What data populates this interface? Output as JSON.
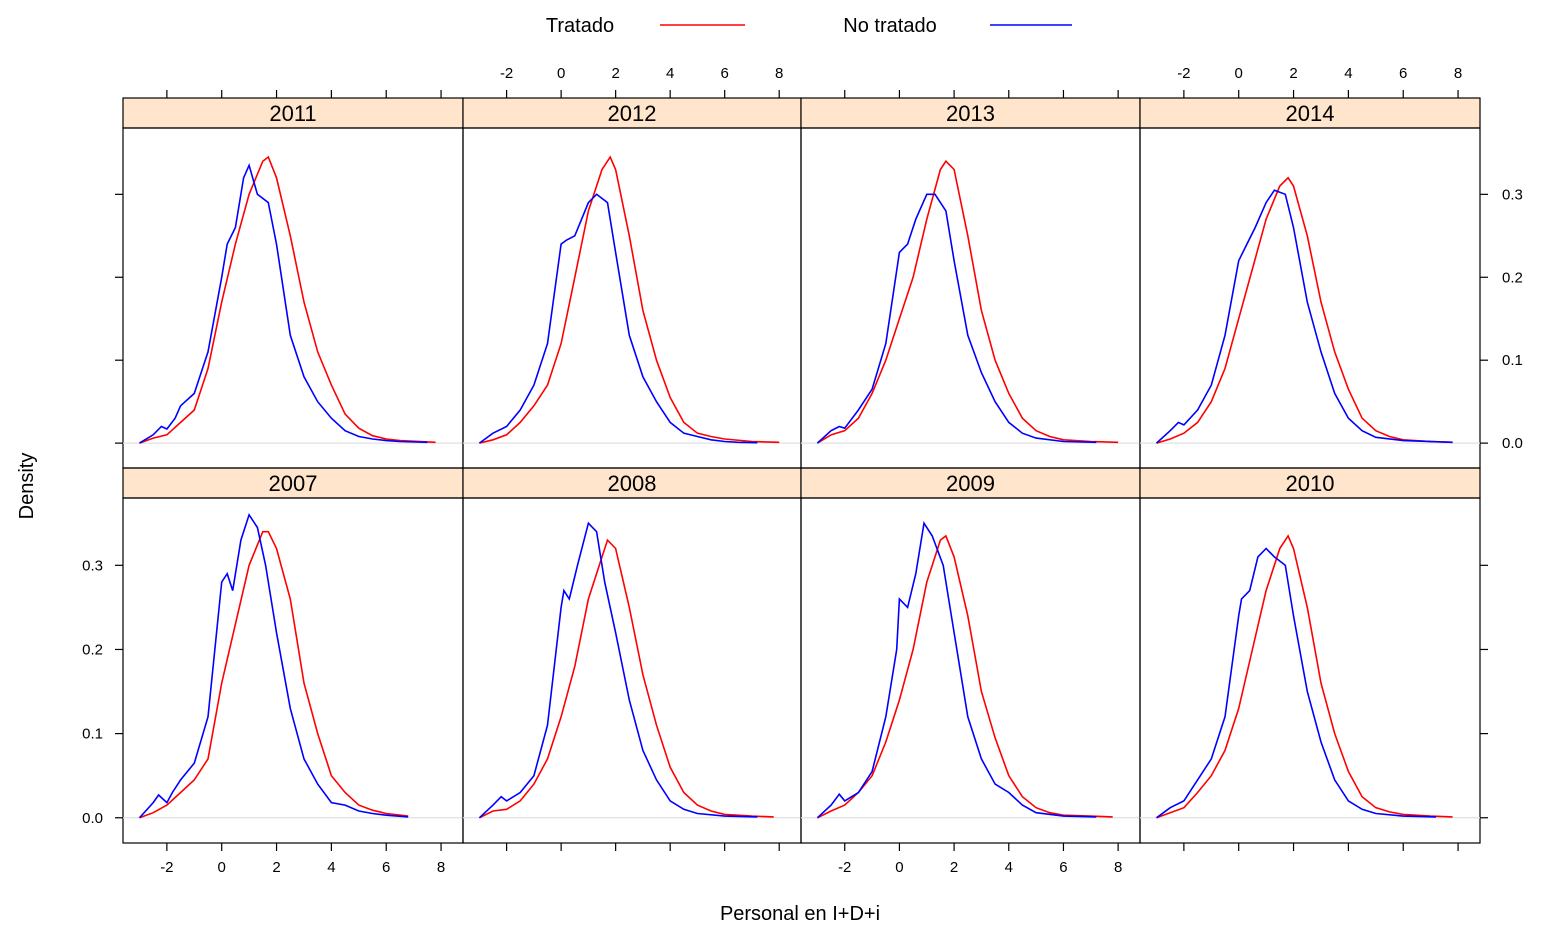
{
  "chart_data": {
    "type": "line",
    "subtype": "density",
    "xlabel": "Personal en I+D+i",
    "ylabel": "Density",
    "xlim": [
      -3.6,
      8.8
    ],
    "ylim": [
      -0.03,
      0.38
    ],
    "xticks": [
      -2,
      0,
      2,
      4,
      6,
      8
    ],
    "yticks": [
      0.0,
      0.1,
      0.2,
      0.3
    ],
    "ytick_labels": [
      "0.0",
      "0.1",
      "0.2",
      "0.3"
    ],
    "strip_color": "#ffe5cc",
    "legend": {
      "position": "top",
      "items": [
        {
          "name": "Tratado",
          "color": "#ff0000"
        },
        {
          "name": "No tratado",
          "color": "#0000ff"
        }
      ]
    },
    "panels": [
      {
        "year": "2011",
        "row": 0,
        "col": 0,
        "series": [
          {
            "name": "Tratado",
            "color": "#ff0000",
            "x": [
              -3,
              -2.5,
              -2,
              -1.5,
              -1,
              -0.5,
              0,
              0.5,
              1,
              1.5,
              1.7,
              2,
              2.5,
              3,
              3.5,
              4,
              4.5,
              5,
              5.5,
              6,
              6.5,
              7.8
            ],
            "y": [
              0,
              0.006,
              0.01,
              0.025,
              0.04,
              0.09,
              0.17,
              0.24,
              0.3,
              0.34,
              0.345,
              0.32,
              0.25,
              0.17,
              0.11,
              0.07,
              0.035,
              0.018,
              0.009,
              0.005,
              0.003,
              0.001
            ]
          },
          {
            "name": "No tratado",
            "color": "#0000ff",
            "x": [
              -3,
              -2.5,
              -2.2,
              -2,
              -1.7,
              -1.5,
              -1,
              -0.5,
              0,
              0.2,
              0.5,
              0.8,
              1,
              1.3,
              1.7,
              2,
              2.5,
              3,
              3.5,
              4,
              4.5,
              5,
              5.5,
              6,
              6.5,
              7.5
            ],
            "y": [
              0,
              0.01,
              0.02,
              0.017,
              0.03,
              0.045,
              0.06,
              0.11,
              0.2,
              0.24,
              0.26,
              0.32,
              0.335,
              0.3,
              0.29,
              0.24,
              0.13,
              0.08,
              0.05,
              0.03,
              0.015,
              0.008,
              0.005,
              0.003,
              0.002,
              0.001
            ]
          }
        ]
      },
      {
        "year": "2012",
        "row": 0,
        "col": 1,
        "series": [
          {
            "name": "Tratado",
            "color": "#ff0000",
            "x": [
              -3,
              -2.5,
              -2,
              -1.5,
              -1,
              -0.5,
              0,
              0.5,
              1,
              1.5,
              1.8,
              2,
              2.5,
              3,
              3.5,
              4,
              4.5,
              5,
              5.5,
              6,
              7,
              8
            ],
            "y": [
              0,
              0.004,
              0.01,
              0.025,
              0.045,
              0.07,
              0.12,
              0.2,
              0.28,
              0.33,
              0.345,
              0.33,
              0.25,
              0.16,
              0.1,
              0.055,
              0.025,
              0.012,
              0.008,
              0.005,
              0.002,
              0.001
            ]
          },
          {
            "name": "No tratado",
            "color": "#0000ff",
            "x": [
              -3,
              -2.5,
              -2,
              -1.5,
              -1,
              -0.5,
              0,
              0.2,
              0.5,
              1,
              1.3,
              1.7,
              2,
              2.5,
              3,
              3.5,
              4,
              4.5,
              5,
              5.5,
              6,
              6.5,
              7.2
            ],
            "y": [
              0,
              0.012,
              0.02,
              0.04,
              0.07,
              0.12,
              0.24,
              0.245,
              0.25,
              0.29,
              0.3,
              0.29,
              0.23,
              0.13,
              0.08,
              0.05,
              0.025,
              0.012,
              0.008,
              0.004,
              0.002,
              0.001,
              0.0005
            ]
          }
        ]
      },
      {
        "year": "2013",
        "row": 0,
        "col": 2,
        "series": [
          {
            "name": "Tratado",
            "color": "#ff0000",
            "x": [
              -3,
              -2.5,
              -2,
              -1.5,
              -1,
              -0.5,
              0,
              0.5,
              1,
              1.5,
              1.7,
              2,
              2.5,
              3,
              3.5,
              4,
              4.5,
              5,
              5.5,
              6,
              7,
              8
            ],
            "y": [
              0,
              0.01,
              0.015,
              0.03,
              0.06,
              0.1,
              0.15,
              0.2,
              0.27,
              0.33,
              0.34,
              0.33,
              0.25,
              0.16,
              0.1,
              0.06,
              0.03,
              0.015,
              0.008,
              0.004,
              0.002,
              0.001
            ]
          },
          {
            "name": "No tratado",
            "color": "#0000ff",
            "x": [
              -3,
              -2.5,
              -2.2,
              -2,
              -1.5,
              -1,
              -0.5,
              0,
              0.3,
              0.6,
              1,
              1.3,
              1.7,
              2,
              2.5,
              3,
              3.5,
              4,
              4.5,
              5,
              6,
              7.2
            ],
            "y": [
              0,
              0.015,
              0.02,
              0.018,
              0.04,
              0.065,
              0.12,
              0.23,
              0.24,
              0.27,
              0.3,
              0.3,
              0.28,
              0.22,
              0.13,
              0.085,
              0.05,
              0.025,
              0.012,
              0.006,
              0.002,
              0.001
            ]
          }
        ]
      },
      {
        "year": "2014",
        "row": 0,
        "col": 3,
        "series": [
          {
            "name": "Tratado",
            "color": "#ff0000",
            "x": [
              -3,
              -2.5,
              -2,
              -1.5,
              -1,
              -0.5,
              0,
              0.5,
              1,
              1.5,
              1.8,
              2,
              2.5,
              3,
              3.5,
              4,
              4.5,
              5,
              5.5,
              6,
              7,
              7.8
            ],
            "y": [
              0,
              0.005,
              0.012,
              0.025,
              0.05,
              0.09,
              0.15,
              0.21,
              0.27,
              0.31,
              0.32,
              0.31,
              0.25,
              0.17,
              0.11,
              0.065,
              0.03,
              0.015,
              0.008,
              0.004,
              0.002,
              0.001
            ]
          },
          {
            "name": "No tratado",
            "color": "#0000ff",
            "x": [
              -3,
              -2.5,
              -2.2,
              -2,
              -1.5,
              -1,
              -0.5,
              0,
              0.3,
              0.6,
              1,
              1.3,
              1.7,
              2,
              2.5,
              3,
              3.5,
              4,
              4.5,
              5,
              6,
              7.8
            ],
            "y": [
              0,
              0.015,
              0.025,
              0.022,
              0.04,
              0.07,
              0.13,
              0.22,
              0.24,
              0.26,
              0.29,
              0.305,
              0.3,
              0.26,
              0.17,
              0.11,
              0.06,
              0.03,
              0.015,
              0.007,
              0.003,
              0.001
            ]
          }
        ]
      },
      {
        "year": "2007",
        "row": 1,
        "col": 0,
        "series": [
          {
            "name": "Tratado",
            "color": "#ff0000",
            "x": [
              -3,
              -2.5,
              -2,
              -1.5,
              -1,
              -0.5,
              0,
              0.5,
              1,
              1.5,
              1.7,
              2,
              2.5,
              3,
              3.5,
              4,
              4.5,
              5,
              5.5,
              6,
              6.8
            ],
            "y": [
              0,
              0.006,
              0.015,
              0.03,
              0.045,
              0.07,
              0.16,
              0.23,
              0.3,
              0.34,
              0.34,
              0.32,
              0.26,
              0.16,
              0.1,
              0.05,
              0.03,
              0.015,
              0.009,
              0.005,
              0.002
            ]
          },
          {
            "name": "No tratado",
            "color": "#0000ff",
            "x": [
              -3,
              -2.5,
              -2.3,
              -2,
              -1.8,
              -1.5,
              -1,
              -0.5,
              0,
              0.2,
              0.4,
              0.7,
              1,
              1.3,
              1.6,
              2,
              2.5,
              3,
              3.5,
              4,
              4.5,
              5,
              5.5,
              6,
              6.8
            ],
            "y": [
              0,
              0.018,
              0.027,
              0.018,
              0.03,
              0.045,
              0.065,
              0.12,
              0.28,
              0.29,
              0.27,
              0.33,
              0.36,
              0.345,
              0.3,
              0.22,
              0.13,
              0.07,
              0.04,
              0.018,
              0.015,
              0.008,
              0.005,
              0.003,
              0.001
            ]
          }
        ]
      },
      {
        "year": "2008",
        "row": 1,
        "col": 1,
        "series": [
          {
            "name": "Tratado",
            "color": "#ff0000",
            "x": [
              -3,
              -2.5,
              -2,
              -1.5,
              -1,
              -0.5,
              0,
              0.5,
              1,
              1.5,
              1.7,
              2,
              2.5,
              3,
              3.5,
              4,
              4.5,
              5,
              5.5,
              6,
              7,
              7.8
            ],
            "y": [
              0,
              0.008,
              0.01,
              0.02,
              0.04,
              0.07,
              0.12,
              0.18,
              0.26,
              0.31,
              0.33,
              0.32,
              0.25,
              0.17,
              0.11,
              0.06,
              0.03,
              0.015,
              0.008,
              0.004,
              0.002,
              0.001
            ]
          },
          {
            "name": "No tratado",
            "color": "#0000ff",
            "x": [
              -3,
              -2.5,
              -2.2,
              -2,
              -1.5,
              -1,
              -0.5,
              0,
              0.1,
              0.3,
              0.6,
              1,
              1.3,
              1.6,
              2,
              2.5,
              3,
              3.5,
              4,
              4.5,
              5,
              6,
              7.2
            ],
            "y": [
              0,
              0.015,
              0.025,
              0.02,
              0.03,
              0.05,
              0.11,
              0.25,
              0.27,
              0.26,
              0.3,
              0.35,
              0.34,
              0.28,
              0.22,
              0.14,
              0.08,
              0.045,
              0.02,
              0.01,
              0.005,
              0.002,
              0.001
            ]
          }
        ]
      },
      {
        "year": "2009",
        "row": 1,
        "col": 2,
        "series": [
          {
            "name": "Tratado",
            "color": "#ff0000",
            "x": [
              -3,
              -2.5,
              -2,
              -1.5,
              -1,
              -0.5,
              0,
              0.5,
              1,
              1.5,
              1.7,
              2,
              2.5,
              3,
              3.5,
              4,
              4.5,
              5,
              5.5,
              6,
              7,
              7.8
            ],
            "y": [
              0,
              0.008,
              0.015,
              0.03,
              0.05,
              0.09,
              0.14,
              0.2,
              0.28,
              0.33,
              0.335,
              0.31,
              0.24,
              0.15,
              0.095,
              0.05,
              0.025,
              0.012,
              0.006,
              0.003,
              0.002,
              0.001
            ]
          },
          {
            "name": "No tratado",
            "color": "#0000ff",
            "x": [
              -3,
              -2.5,
              -2.2,
              -2,
              -1.5,
              -1,
              -0.5,
              -0.1,
              0,
              0.3,
              0.6,
              0.9,
              1.2,
              1.6,
              2,
              2.5,
              3,
              3.5,
              4,
              4.5,
              5,
              6,
              7.2
            ],
            "y": [
              0,
              0.015,
              0.028,
              0.02,
              0.03,
              0.055,
              0.12,
              0.2,
              0.26,
              0.25,
              0.29,
              0.35,
              0.335,
              0.3,
              0.22,
              0.12,
              0.07,
              0.04,
              0.03,
              0.015,
              0.006,
              0.002,
              0.001
            ]
          }
        ]
      },
      {
        "year": "2010",
        "row": 1,
        "col": 3,
        "series": [
          {
            "name": "Tratado",
            "color": "#ff0000",
            "x": [
              -3,
              -2.5,
              -2,
              -1.5,
              -1,
              -0.5,
              0,
              0.5,
              1,
              1.5,
              1.8,
              2,
              2.5,
              3,
              3.5,
              4,
              4.5,
              5,
              5.5,
              6,
              7,
              7.8
            ],
            "y": [
              0,
              0.006,
              0.012,
              0.03,
              0.05,
              0.08,
              0.13,
              0.2,
              0.27,
              0.32,
              0.335,
              0.32,
              0.25,
              0.16,
              0.1,
              0.055,
              0.025,
              0.012,
              0.007,
              0.004,
              0.002,
              0.001
            ]
          },
          {
            "name": "No tratado",
            "color": "#0000ff",
            "x": [
              -3,
              -2.5,
              -2,
              -1.7,
              -1.5,
              -1,
              -0.5,
              0,
              0.1,
              0.4,
              0.7,
              1,
              1.3,
              1.7,
              2,
              2.5,
              3,
              3.5,
              4,
              4.5,
              5,
              6,
              7.2
            ],
            "y": [
              0,
              0.012,
              0.02,
              0.035,
              0.045,
              0.07,
              0.12,
              0.24,
              0.26,
              0.27,
              0.31,
              0.32,
              0.31,
              0.3,
              0.24,
              0.15,
              0.09,
              0.045,
              0.02,
              0.01,
              0.005,
              0.002,
              0.001
            ]
          }
        ]
      }
    ]
  }
}
